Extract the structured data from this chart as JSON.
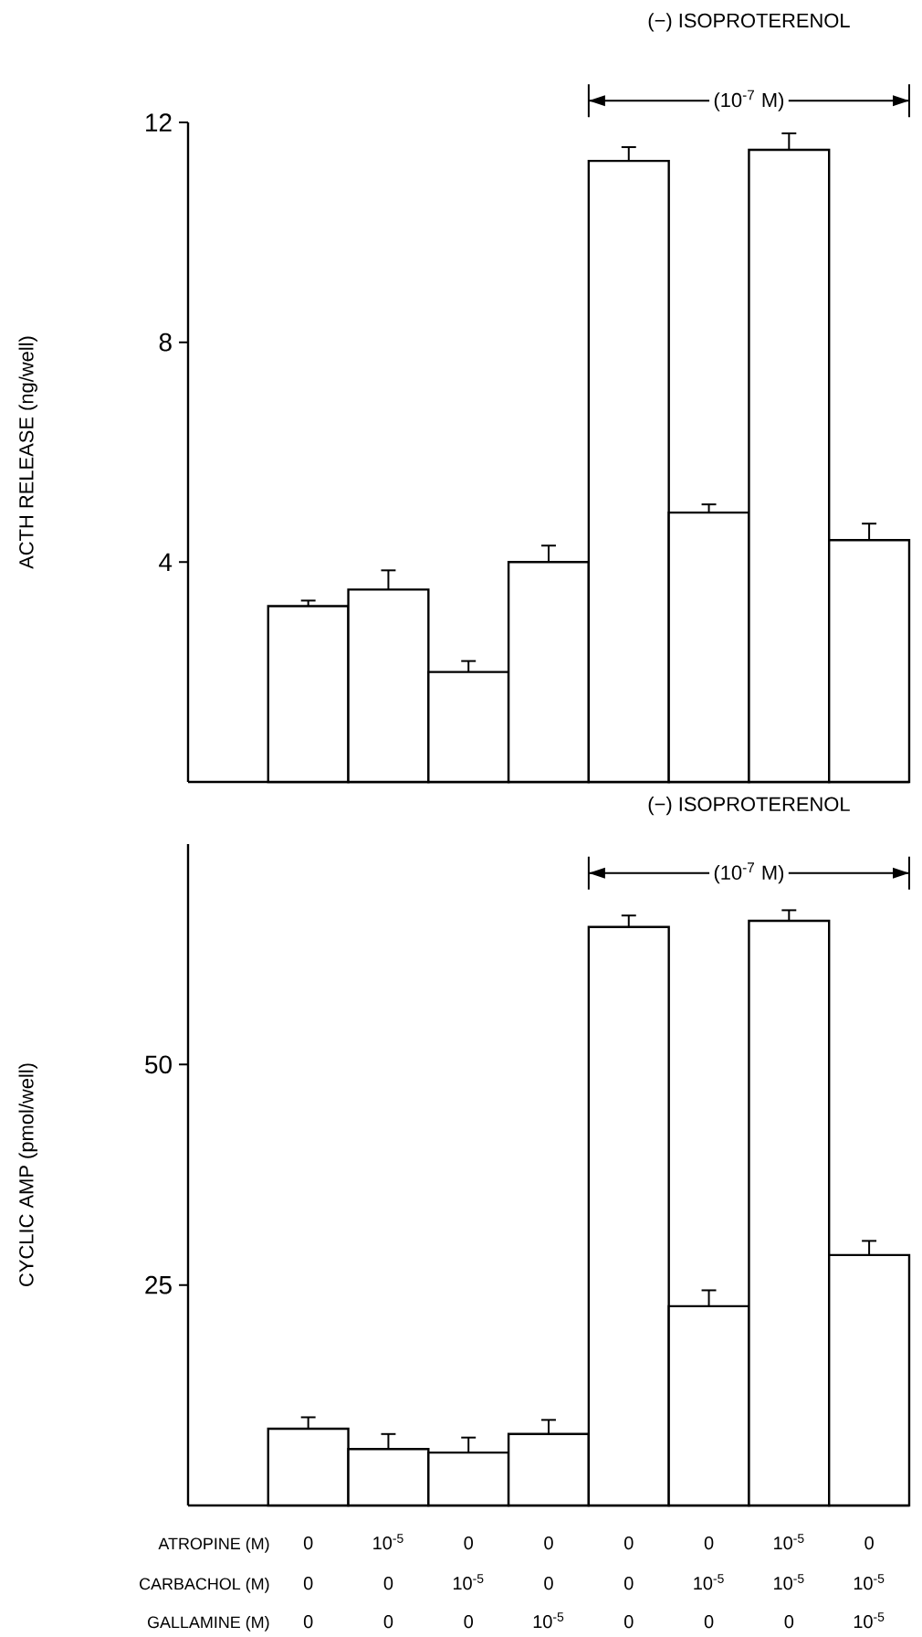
{
  "chart_data": [
    {
      "type": "bar",
      "ylabel": "ACTH RELEASE (ng/well)",
      "categories": [
        null,
        null,
        null,
        null,
        null,
        null,
        null,
        null,
        null
      ],
      "color": "#000000",
      "values": [
        null,
        3.2,
        3.5,
        2.0,
        4.0,
        11.3,
        4.9,
        11.5,
        4.4
      ],
      "errors": [
        null,
        0.1,
        0.35,
        0.2,
        0.3,
        0.25,
        0.15,
        0.3,
        0.3
      ],
      "ylim": [
        0,
        12
      ],
      "yticks": [
        4,
        8,
        12
      ],
      "annotations": [
        "(−) ISOPROTERENOL",
        "(10$^{-7}$ M)"
      ]
    },
    {
      "type": "bar",
      "ylabel": "CYCLIC AMP (pmol/well)",
      "categories": [
        null,
        null,
        null,
        null,
        null,
        null,
        null,
        null,
        null
      ],
      "color": "#000000",
      "values": [
        null,
        8.7,
        6.4,
        6.0,
        8.1,
        65.6,
        22.6,
        66.3,
        28.4
      ],
      "errors": [
        null,
        1.3,
        1.7,
        1.7,
        1.6,
        1.3,
        1.8,
        1.2,
        1.6
      ],
      "ylim": [
        0,
        75
      ],
      "yticks": [
        25,
        50
      ],
      "annotations": [
        "(−) ISOPROTERENOL",
        "(10$^{-7}$ M)"
      ]
    },
    {
      "type": "other",
      "annotations": [
        "ATROPINE (M)",
        "0",
        "10$^{-5}$",
        "0",
        "0",
        "0",
        "0",
        "10$^{-5}$",
        "0",
        "CARBACHOL (M)",
        "0",
        "0",
        "10$^{-5}$",
        "0",
        "0",
        "10$^{-5}$",
        "10$^{-5}$",
        "10$^{-5}$",
        "GALLAMINE (M)",
        "0",
        "0",
        "0",
        "10$^{-5}$",
        "0",
        "0",
        "0",
        "10$^{-5}$"
      ]
    }
  ]
}
